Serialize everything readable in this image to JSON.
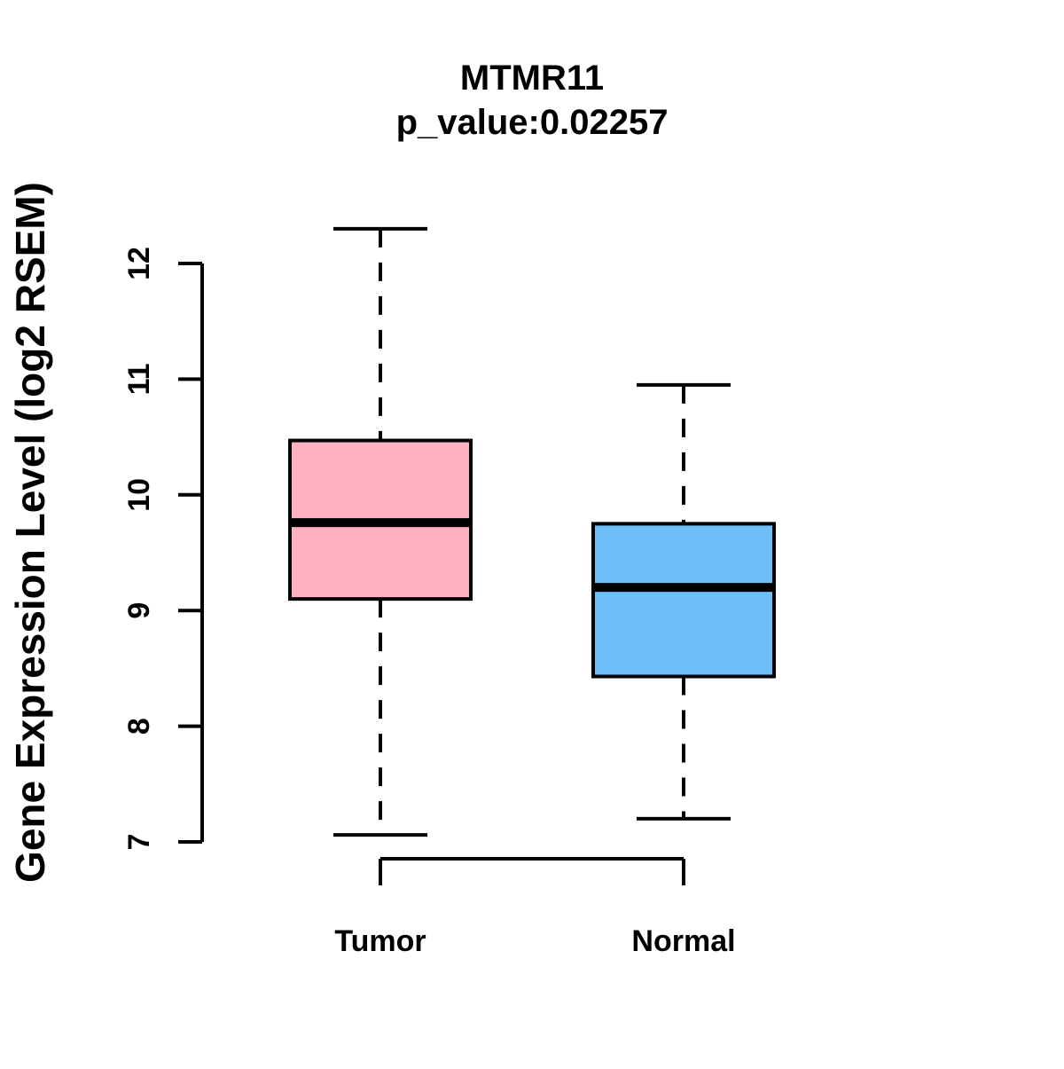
{
  "header": {
    "title": "MTMR11",
    "subtitle": "p_value:0.02257"
  },
  "axes": {
    "ylabel": "Gene Expression Level (log2 RSEM)",
    "yticks": [
      "7",
      "8",
      "9",
      "10",
      "11",
      "12"
    ],
    "ylim": [
      7,
      12
    ]
  },
  "colors": {
    "tumor_fill": "#FFB0C1",
    "normal_fill": "#6EBEF8",
    "stroke": "#000000",
    "background": "#FFFFFF"
  },
  "chart_data": {
    "type": "boxplot",
    "title": "MTMR11",
    "subtitle": "p_value:0.02257",
    "ylabel": "Gene Expression Level (log2 RSEM)",
    "xlabel": "",
    "categories": [
      "Tumor",
      "Normal"
    ],
    "yticks": [
      7,
      8,
      9,
      10,
      11,
      12
    ],
    "ylim": [
      7,
      12
    ],
    "grid": false,
    "legend": "none",
    "series": [
      {
        "name": "Tumor",
        "lower_whisker": 7.06,
        "q1": 9.1,
        "median": 9.76,
        "q3": 10.47,
        "upper_whisker": 12.3,
        "color": "#FFB0C1"
      },
      {
        "name": "Normal",
        "lower_whisker": 7.2,
        "q1": 8.43,
        "median": 9.2,
        "q3": 9.75,
        "upper_whisker": 10.95,
        "color": "#6EBEF8"
      }
    ]
  }
}
